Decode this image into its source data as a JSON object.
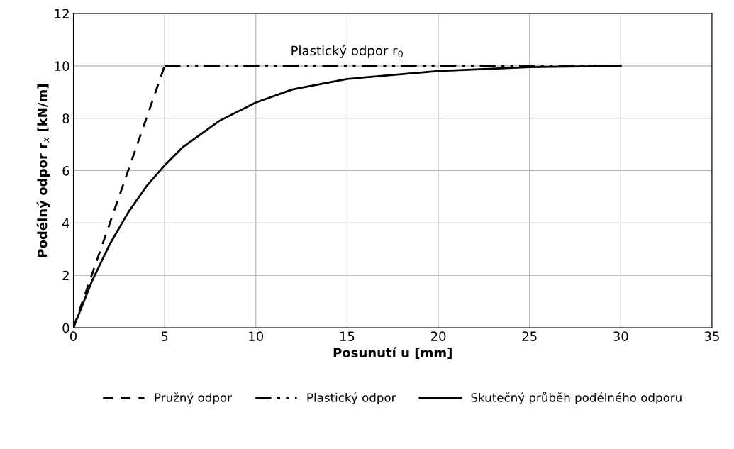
{
  "chart_data": {
    "type": "line",
    "xlabel": "Posunutí u [mm]",
    "ylabel": "Podélný odpor r$_{x}$ [kN/m]",
    "xlim": [
      0,
      35
    ],
    "xticks": [
      0,
      5,
      10,
      15,
      20,
      25,
      30,
      35
    ],
    "ylim": [
      0,
      12
    ],
    "yticks": [
      0,
      2,
      4,
      6,
      8,
      10,
      12
    ],
    "grid": true,
    "legend": "bottom",
    "marker": "none",
    "series": [
      {
        "name": "Pružný odpor",
        "color": "#000000",
        "line_style": "dashed",
        "x": [
          0,
          5
        ],
        "values": [
          0,
          10
        ]
      },
      {
        "name": "Plastický odpor",
        "color": "#000000",
        "line_style": "dashdot",
        "x": [
          5,
          30
        ],
        "values": [
          10,
          10
        ]
      },
      {
        "name": "Skutečný průběh podélného odporu",
        "color": "#000000",
        "line_style": "solid",
        "x": [
          0,
          1,
          2,
          3,
          4,
          5,
          6,
          7,
          8,
          10,
          12,
          15,
          20,
          25,
          30
        ],
        "values": [
          0,
          1.75,
          3.2,
          4.4,
          5.4,
          6.2,
          6.9,
          7.4,
          7.9,
          8.6,
          9.1,
          9.5,
          9.8,
          9.95,
          10
        ]
      }
    ],
    "annotations": [
      {
        "text": "Plastický odpor r$_{0}$",
        "x": 15,
        "y": 10
      }
    ]
  }
}
